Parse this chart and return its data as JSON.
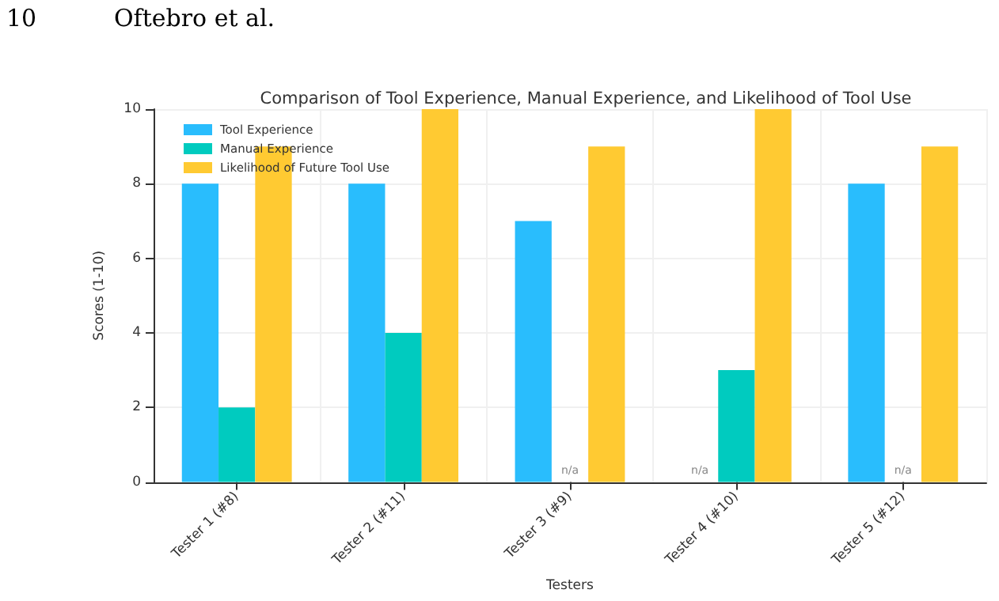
{
  "chart_data": {
    "type": "bar",
    "title": "Comparison of Tool Experience, Manual Experience, and Likelihood of Tool Use",
    "xlabel": "Testers",
    "ylabel": "Scores (1-10)",
    "categories": [
      "Tester 1 (#8)",
      "Tester 2 (#11)",
      "Tester 3 (#9)",
      "Tester 4 (#10)",
      "Tester 5 (#12)"
    ],
    "series": [
      {
        "name": "Tool Experience",
        "color": "#29bdfd",
        "values": [
          8,
          8,
          7,
          null,
          8
        ],
        "value_labels": [
          null,
          null,
          null,
          "n/a",
          null
        ]
      },
      {
        "name": "Manual Experience",
        "color": "#00cbbf",
        "values": [
          2,
          4,
          null,
          3,
          null
        ],
        "value_labels": [
          null,
          null,
          "n/a",
          null,
          "n/a"
        ]
      },
      {
        "name": "Likelihood of Future Tool Use",
        "color": "#ffca32",
        "values": [
          9,
          10,
          9,
          10,
          9
        ]
      }
    ],
    "ylim": [
      0,
      10
    ],
    "yticks": [
      0,
      2,
      4,
      6,
      8,
      10
    ],
    "grid": true,
    "legend": "top left",
    "annotations": [
      "10",
      "Oftebro et al."
    ]
  }
}
